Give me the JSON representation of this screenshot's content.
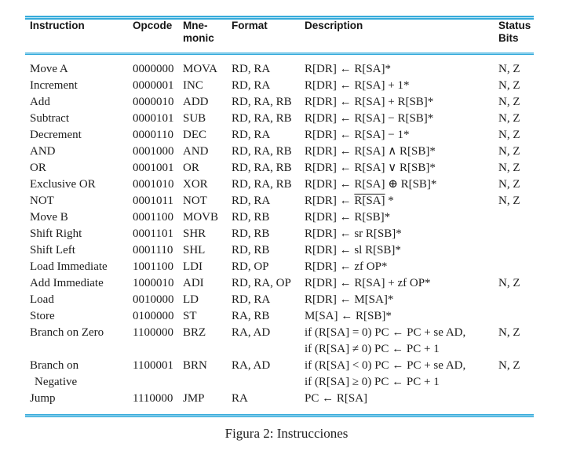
{
  "figure": {
    "headers": {
      "instruction": "Instruction",
      "opcode": "Opcode",
      "mnemonic_line1": "Mne-",
      "mnemonic_line2": "monic",
      "format": "Format",
      "description": "Description",
      "status_line1": "Status",
      "status_line2": "Bits"
    },
    "rows": [
      {
        "instruction": [
          "Move A"
        ],
        "opcode": "0000000",
        "mnemonic": "MOVA",
        "format": "RD, RA",
        "description": [
          [
            {
              "t": "R[DR] ← R[SA]*"
            }
          ]
        ],
        "status": [
          "N, Z"
        ]
      },
      {
        "instruction": [
          "Increment"
        ],
        "opcode": "0000001",
        "mnemonic": "INC",
        "format": "RD, RA",
        "description": [
          [
            {
              "t": "R[DR] ← R[SA] + 1*"
            }
          ]
        ],
        "status": [
          "N, Z"
        ]
      },
      {
        "instruction": [
          "Add"
        ],
        "opcode": "0000010",
        "mnemonic": "ADD",
        "format": "RD, RA, RB",
        "description": [
          [
            {
              "t": "R[DR] ← R[SA] + R[SB]*"
            }
          ]
        ],
        "status": [
          "N, Z"
        ]
      },
      {
        "instruction": [
          "Subtract"
        ],
        "opcode": "0000101",
        "mnemonic": "SUB",
        "format": "RD, RA, RB",
        "description": [
          [
            {
              "t": "R[DR] ← R[SA] − R[SB]*"
            }
          ]
        ],
        "status": [
          "N, Z"
        ]
      },
      {
        "instruction": [
          "Decrement"
        ],
        "opcode": "0000110",
        "mnemonic": "DEC",
        "format": "RD, RA",
        "description": [
          [
            {
              "t": "R[DR] ← R[SA] − 1*"
            }
          ]
        ],
        "status": [
          "N, Z"
        ]
      },
      {
        "instruction": [
          "AND"
        ],
        "opcode": "0001000",
        "mnemonic": "AND",
        "format": "RD, RA, RB",
        "description": [
          [
            {
              "t": "R[DR] ← R[SA] ∧ R[SB]*"
            }
          ]
        ],
        "status": [
          "N, Z"
        ]
      },
      {
        "instruction": [
          "OR"
        ],
        "opcode": "0001001",
        "mnemonic": "OR",
        "format": "RD, RA, RB",
        "description": [
          [
            {
              "t": "R[DR] ← R[SA] ∨ R[SB]*"
            }
          ]
        ],
        "status": [
          "N, Z"
        ]
      },
      {
        "instruction": [
          "Exclusive OR"
        ],
        "opcode": "0001010",
        "mnemonic": "XOR",
        "format": "RD, RA, RB",
        "description": [
          [
            {
              "t": "R[DR] ← R[SA] ⊕ R[SB]*"
            }
          ]
        ],
        "status": [
          "N, Z"
        ]
      },
      {
        "instruction": [
          "NOT"
        ],
        "opcode": "0001011",
        "mnemonic": "NOT",
        "format": "RD, RA",
        "description": [
          [
            {
              "t": "R[DR] ← "
            },
            {
              "t": "R[SA]",
              "overline": true
            },
            {
              "t": " *"
            }
          ]
        ],
        "status": [
          "N, Z"
        ]
      },
      {
        "instruction": [
          "Move B"
        ],
        "opcode": "0001100",
        "mnemonic": "MOVB",
        "format": "RD, RB",
        "description": [
          [
            {
              "t": "R[DR] ← R[SB]*"
            }
          ]
        ],
        "status": []
      },
      {
        "instruction": [
          "Shift Right"
        ],
        "opcode": "0001101",
        "mnemonic": "SHR",
        "format": "RD, RB",
        "description": [
          [
            {
              "t": "R[DR] ← sr R[SB]*"
            }
          ]
        ],
        "status": []
      },
      {
        "instruction": [
          "Shift Left"
        ],
        "opcode": "0001110",
        "mnemonic": "SHL",
        "format": "RD, RB",
        "description": [
          [
            {
              "t": "R[DR] ← sl R[SB]*"
            }
          ]
        ],
        "status": []
      },
      {
        "instruction": [
          "Load Immediate"
        ],
        "opcode": "1001100",
        "mnemonic": "LDI",
        "format": "RD, OP",
        "description": [
          [
            {
              "t": "R[DR] ← zf OP*"
            }
          ]
        ],
        "status": []
      },
      {
        "instruction": [
          "Add Immediate"
        ],
        "opcode": "1000010",
        "mnemonic": "ADI",
        "format": "RD, RA, OP",
        "description": [
          [
            {
              "t": "R[DR] ← R[SA] + zf OP*"
            }
          ]
        ],
        "status": [
          "N, Z"
        ]
      },
      {
        "instruction": [
          "Load"
        ],
        "opcode": "0010000",
        "mnemonic": "LD",
        "format": "RD, RA",
        "description": [
          [
            {
              "t": "R[DR] ← M[SA]*"
            }
          ]
        ],
        "status": []
      },
      {
        "instruction": [
          "Store"
        ],
        "opcode": "0100000",
        "mnemonic": "ST",
        "format": "RA, RB",
        "description": [
          [
            {
              "t": "M[SA] ← R[SB]*"
            }
          ]
        ],
        "status": []
      },
      {
        "instruction": [
          "Branch on Zero"
        ],
        "opcode": "1100000",
        "mnemonic": "BRZ",
        "format": "RA, AD",
        "description": [
          [
            {
              "t": "if (R[SA] = 0) PC ← PC + se AD,"
            }
          ],
          [
            {
              "t": "if (R[SA] ≠ 0) PC ← PC + 1"
            }
          ]
        ],
        "status": [
          "N, Z"
        ]
      },
      {
        "instruction": [
          "Branch on",
          "Negative"
        ],
        "opcode": "1100001",
        "mnemonic": "BRN",
        "format": "RA, AD",
        "description": [
          [
            {
              "t": "if (R[SA] < 0) PC ← PC + se AD,"
            }
          ],
          [
            {
              "t": "if (R[SA] ≥ 0) PC ← PC + 1"
            }
          ]
        ],
        "status": [
          "N, Z"
        ]
      },
      {
        "instruction": [
          "Jump"
        ],
        "opcode": "1110000",
        "mnemonic": "JMP",
        "format": "RA",
        "description": [
          [
            {
              "t": "PC ← R[SA]"
            }
          ]
        ],
        "status": []
      }
    ],
    "caption": "Figura 2: Instrucciones"
  },
  "colors": {
    "rule_cyan": "#36abdb",
    "rule_cyan_light": "#bfe6f5",
    "text": "#1c1c1c"
  }
}
